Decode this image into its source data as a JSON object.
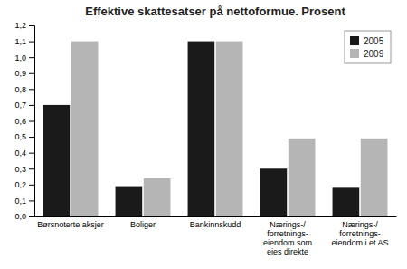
{
  "chart_data": {
    "type": "bar",
    "title": "Effektive skattesatser på nettoformue. Prosent",
    "categories": [
      "Børsnoterte aksjer",
      "Boliger",
      "Bankinnskudd",
      "Nærings-/\nforretnings-\neiendom som\neies direkte",
      "Nærings-/\nforretnings-\neiendom i et AS"
    ],
    "series": [
      {
        "name": "2005",
        "color": "#1a1a1a",
        "values": [
          0.7,
          0.19,
          1.1,
          0.3,
          0.18
        ]
      },
      {
        "name": "2009",
        "color": "#b5b5b5",
        "values": [
          1.1,
          0.24,
          1.1,
          0.49,
          0.49
        ]
      }
    ],
    "ylim": [
      0,
      1.2
    ],
    "yticks": [
      {
        "value": 0.0,
        "label": "0,0"
      },
      {
        "value": 0.1,
        "label": "0,1"
      },
      {
        "value": 0.2,
        "label": "0,2"
      },
      {
        "value": 0.3,
        "label": "0,3"
      },
      {
        "value": 0.4,
        "label": "0,4"
      },
      {
        "value": 0.5,
        "label": "0,5"
      },
      {
        "value": 0.6,
        "label": "0,6"
      },
      {
        "value": 0.7,
        "label": "0,7"
      },
      {
        "value": 0.8,
        "label": "0,8"
      },
      {
        "value": 0.9,
        "label": "0,9"
      },
      {
        "value": 1.0,
        "label": "1,0"
      },
      {
        "value": 1.1,
        "label": "1,1"
      },
      {
        "value": 1.2,
        "label": "1,2"
      }
    ],
    "legend": "upper right",
    "grid": false
  }
}
